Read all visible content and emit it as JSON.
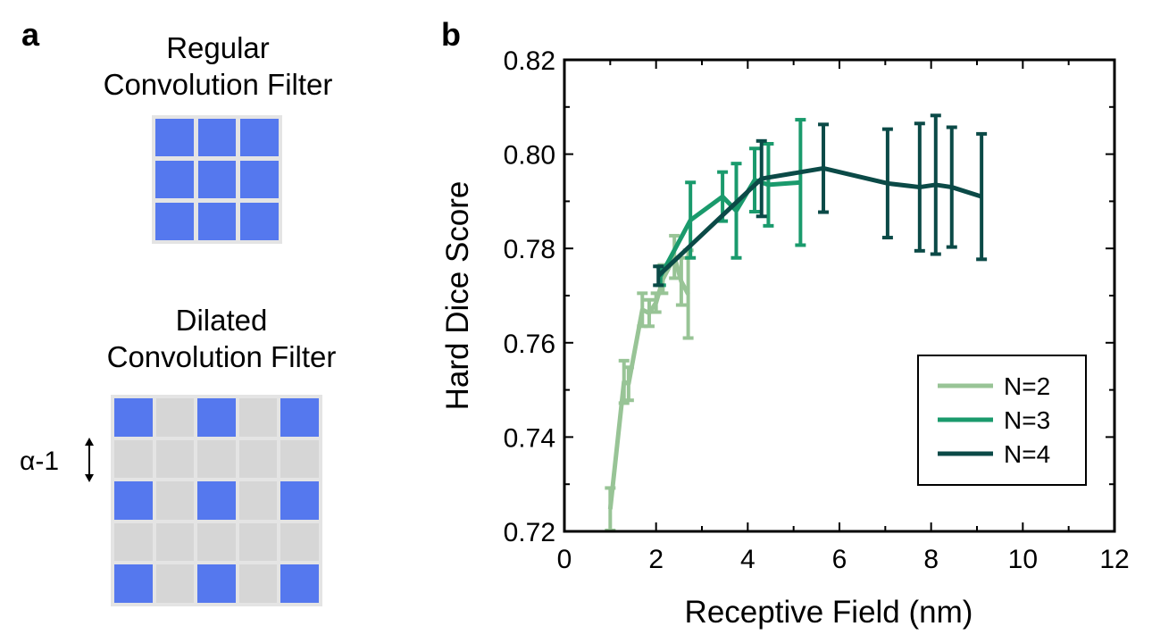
{
  "panel_a": {
    "label": "a",
    "regular": {
      "title_line1": "Regular",
      "title_line2": "Convolution Filter",
      "rows": 3,
      "cols": 3,
      "cells": [
        1,
        1,
        1,
        1,
        1,
        1,
        1,
        1,
        1
      ]
    },
    "dilated": {
      "title_line1": "Dilated",
      "title_line2": "Convolution Filter",
      "rows": 5,
      "cols": 5,
      "cells": [
        1,
        0,
        1,
        0,
        1,
        0,
        0,
        0,
        0,
        0,
        1,
        0,
        1,
        0,
        1,
        0,
        0,
        0,
        0,
        0,
        1,
        0,
        1,
        0,
        1
      ],
      "spacing_label": "α-1"
    },
    "colors": {
      "active": "#5578ee",
      "inactive": "#d6d6d6",
      "border": "#e4e4e4"
    }
  },
  "panel_b": {
    "label": "b"
  },
  "chart_data": {
    "type": "line",
    "title": "",
    "xlabel": "Receptive Field (nm)",
    "ylabel": "Hard Dice Score",
    "xlim": [
      0,
      12
    ],
    "ylim": [
      0.72,
      0.82
    ],
    "xticks": [
      0,
      2,
      4,
      6,
      8,
      10,
      12
    ],
    "yticks": [
      0.72,
      0.74,
      0.76,
      0.78,
      0.8,
      0.82
    ],
    "xtick_labels": [
      "0",
      "2",
      "4",
      "6",
      "8",
      "10",
      "12"
    ],
    "ytick_labels": [
      "0.72",
      "0.74",
      "0.76",
      "0.78",
      "0.80",
      "0.82"
    ],
    "legend_position": "lower-right",
    "series": [
      {
        "name": "N=2",
        "color": "#98c496",
        "x": [
          1.0,
          1.3,
          1.4,
          1.7,
          1.85,
          2.0,
          2.15,
          2.4,
          2.55,
          2.7
        ],
        "y": [
          0.7247,
          0.7517,
          0.7513,
          0.767,
          0.7663,
          0.7685,
          0.7735,
          0.7782,
          0.773,
          0.7703
        ],
        "err": [
          0.0045,
          0.0045,
          0.0035,
          0.0035,
          0.0028,
          0.002,
          0.003,
          0.0045,
          0.005,
          0.0093
        ]
      },
      {
        "name": "N=3",
        "color": "#1a9a6c",
        "x": [
          2.1,
          2.75,
          3.45,
          3.75,
          4.15,
          4.45,
          5.15
        ],
        "y": [
          0.7742,
          0.786,
          0.791,
          0.788,
          0.7945,
          0.7935,
          0.794
        ],
        "err": [
          0.002,
          0.008,
          0.0052,
          0.01,
          0.0067,
          0.0087,
          0.0133
        ]
      },
      {
        "name": "N=4",
        "color": "#0b4a47",
        "x": [
          2.05,
          4.3,
          5.65,
          7.05,
          7.75,
          8.1,
          8.45,
          9.1
        ],
        "y": [
          0.7742,
          0.7948,
          0.797,
          0.7938,
          0.793,
          0.7935,
          0.793,
          0.791
        ],
        "err": [
          0.002,
          0.008,
          0.0093,
          0.0115,
          0.0135,
          0.0147,
          0.0127,
          0.0133
        ]
      }
    ]
  }
}
